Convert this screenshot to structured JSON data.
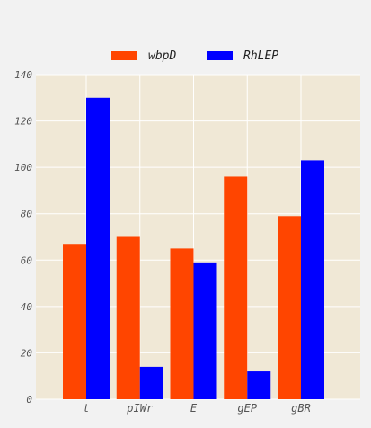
{
  "chart_data": {
    "type": "bar",
    "categories": [
      "t",
      "pIWr",
      "E",
      "gEP",
      "gBR"
    ],
    "series": [
      {
        "name": "wbpD",
        "values": [
          67,
          70,
          65,
          96,
          79
        ],
        "color": "#ff4500"
      },
      {
        "name": "RhLEP",
        "values": [
          130,
          14,
          59,
          12,
          103
        ],
        "color": "#0000ff"
      }
    ],
    "ylim": [
      0,
      140
    ],
    "yticks": [
      0,
      20,
      40,
      60,
      80,
      100,
      120,
      140
    ],
    "grid": true,
    "legend_position": "top-center",
    "plot_background": "#f0e8d6",
    "page_background": "#f2f2f2"
  }
}
